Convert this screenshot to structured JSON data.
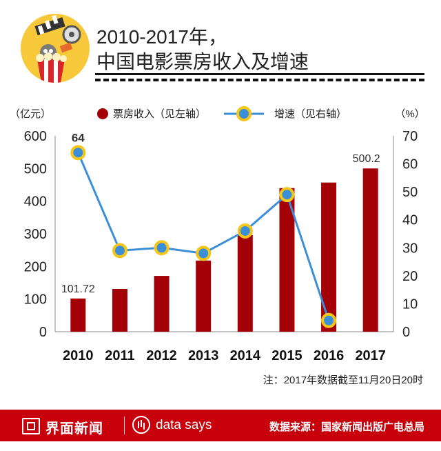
{
  "header": {
    "title_line1": "2010-2017年，",
    "title_line2": "中国电影票房收入及增速"
  },
  "footnote": "注：2017年数据截至11月20日20时",
  "footer": {
    "brand": "界面新闻",
    "data_says": "data says",
    "source": "数据来源：国家新闻出版广电总局"
  },
  "colors": {
    "bar": "#a30008",
    "line": "#3b8fd8",
    "marker_ring": "#f5c518",
    "footer_bg": "#c7000b",
    "badge": "#f6c83a"
  },
  "chart_data": {
    "type": "bar",
    "categories": [
      "2010",
      "2011",
      "2012",
      "2013",
      "2014",
      "2015",
      "2016",
      "2017"
    ],
    "left_unit": "（亿元）",
    "right_unit": "（%）",
    "ylim_left": [
      0,
      600
    ],
    "yticks_left": [
      "0",
      "100",
      "200",
      "300",
      "400",
      "500",
      "600"
    ],
    "ylim_right": [
      0,
      70
    ],
    "yticks_right": [
      "0",
      "10",
      "20",
      "30",
      "40",
      "50",
      "60",
      "70"
    ],
    "legend_position": "top-center",
    "grid": false,
    "series": [
      {
        "name": "票房收入（见左轴）",
        "type": "bar",
        "axis": "left",
        "values": [
          101.72,
          131,
          171,
          218,
          296,
          440,
          457,
          500.2
        ]
      },
      {
        "name": "增速（见右轴）",
        "type": "line",
        "axis": "right",
        "values": [
          64,
          29,
          30,
          28,
          36,
          49,
          4,
          null
        ]
      }
    ],
    "data_labels": [
      {
        "text": "101.72",
        "series": 0,
        "index": 0
      },
      {
        "text": "500.2",
        "series": 0,
        "index": 7
      },
      {
        "text": "64",
        "series": 1,
        "index": 0,
        "bold": true
      }
    ]
  }
}
